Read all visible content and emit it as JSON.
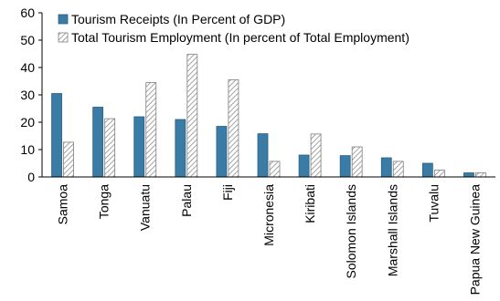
{
  "chart_data": {
    "type": "bar",
    "title": "",
    "xlabel": "",
    "ylabel": "",
    "ylim": [
      0,
      60
    ],
    "yticks": [
      0,
      10,
      20,
      30,
      40,
      50,
      60
    ],
    "grid": false,
    "legend_position": "top-left",
    "categories": [
      "Samoa",
      "Tonga",
      "Vanuatu",
      "Palau",
      "Fiji",
      "Micronesia",
      "Kiribati",
      "Solomon Islands",
      "Marshall Islands",
      "Tuvalu",
      "Papua New Guinea"
    ],
    "series": [
      {
        "name": "Tourism Receipts (In Percent of GDP)",
        "values": [
          30.5,
          25.5,
          22.0,
          21.0,
          18.5,
          15.8,
          8.0,
          7.8,
          7.0,
          5.0,
          1.5
        ],
        "color": "#3a7ca5",
        "pattern": "solid"
      },
      {
        "name": "Total Tourism Employment (In percent of Total Employment)",
        "values": [
          12.7,
          21.3,
          34.5,
          44.8,
          35.5,
          5.7,
          15.7,
          11.0,
          5.7,
          2.5,
          1.5
        ],
        "color": "#d9d9d9",
        "pattern": "hatched"
      }
    ]
  }
}
